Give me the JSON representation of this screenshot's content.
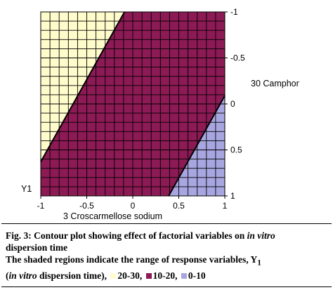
{
  "chart_data": {
    "type": "contour",
    "x": [
      -1,
      -0.5,
      0,
      0.5,
      1
    ],
    "x_tick_labels": [
      "-1",
      "-0.5",
      "0",
      "0.5",
      "1"
    ],
    "xlim": [
      -1,
      1
    ],
    "xlabel": "3 Croscarmellose sodium",
    "y_tick_labels": [
      "-1",
      "-0.5",
      "0",
      "0.5",
      "1"
    ],
    "ylim": [
      -1,
      1
    ],
    "ylabel": "30 Camphor",
    "response_label": "Y1",
    "regions": [
      {
        "range": "20-30",
        "color": "#fffccc",
        "boundary": [
          [
            -1,
            0.63
          ],
          [
            -0.09,
            -1
          ]
        ]
      },
      {
        "range": "10-20",
        "color": "#8b1a55"
      },
      {
        "range": "0-10",
        "color": "#a8a6e0",
        "boundary": [
          [
            0.39,
            1
          ],
          [
            1,
            -0.09
          ]
        ]
      }
    ],
    "grid": true,
    "grid_divisions": 20
  },
  "caption": {
    "line1_prefix": "Fig. 3: Contour plot showing effect of factorial variables on ",
    "line1_italic": "in vitro",
    "line2": "dispersion time",
    "line3": "The shaded regions indicate the range of response variables, Y",
    "line3_sub": "1",
    "line4_open": "(",
    "line4_italic": "in vitro",
    "line4_text": " dispersion time), ",
    "legend": [
      {
        "label": "20-30",
        "color": "#fffccc",
        "sep": ", "
      },
      {
        "label": "10-20",
        "color": "#8b1a55",
        "sep": ", "
      },
      {
        "label": "0-10",
        "color": "#a8a6e0",
        "sep": ""
      }
    ]
  }
}
